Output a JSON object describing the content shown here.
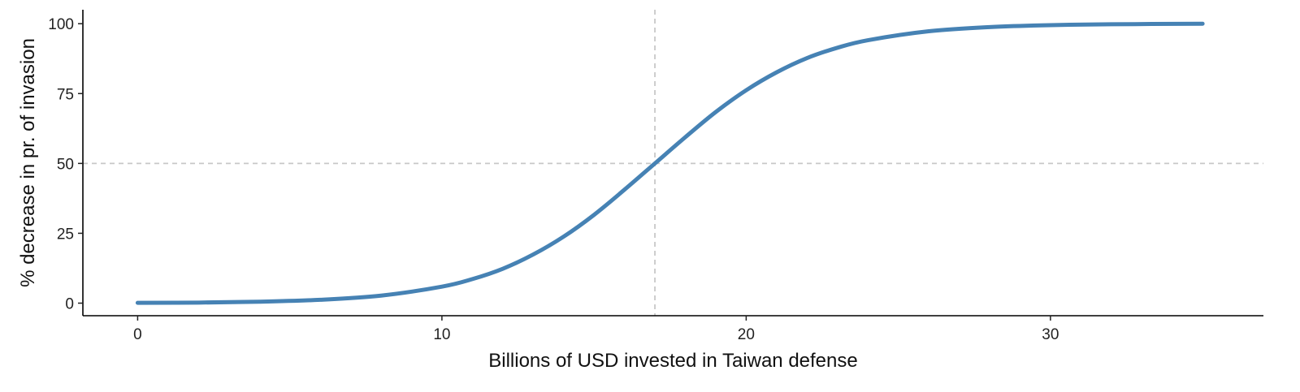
{
  "chart_data": {
    "type": "line",
    "title": "",
    "xlabel": "Billions of USD invested in Taiwan defense",
    "ylabel": "% decrease in pr. of invasion",
    "xlim": [
      -1.8,
      37
    ],
    "ylim": [
      -4.5,
      105
    ],
    "x_ticks": [
      0,
      10,
      20,
      30
    ],
    "y_ticks": [
      0,
      25,
      50,
      75,
      100
    ],
    "x_tick_labels": [
      "0",
      "10",
      "20",
      "30"
    ],
    "y_tick_labels": [
      "0",
      "25",
      "50",
      "75",
      "100"
    ],
    "grid": false,
    "legend": "none",
    "reference_lines": {
      "vertical_x": 17,
      "horizontal_y": 50,
      "color": "#c8c8c8",
      "style": "dashed"
    },
    "series": [
      {
        "color": "#4682b4",
        "x": [
          0,
          2,
          4,
          6,
          8,
          10,
          11,
          12,
          13,
          14,
          15,
          16,
          17,
          18,
          19,
          20,
          21,
          22,
          23,
          24,
          26,
          28,
          30,
          32,
          35
        ],
        "y": [
          0.1,
          0.2,
          0.5,
          1.2,
          2.7,
          5.9,
          8.6,
          12.3,
          17.4,
          23.8,
          31.6,
          40.6,
          50,
          59.4,
          68.4,
          76.2,
          82.6,
          87.7,
          91.4,
          94.1,
          97.3,
          98.8,
          99.5,
          99.8,
          100
        ]
      }
    ]
  }
}
